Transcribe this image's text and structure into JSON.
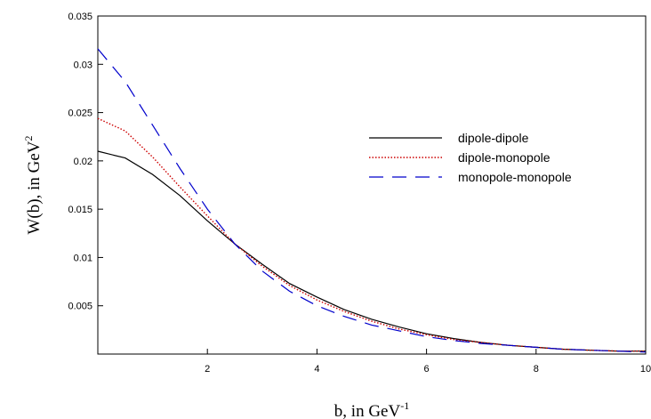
{
  "chart_data": {
    "type": "line",
    "title": "",
    "xlabel": {
      "main": "b, in GeV",
      "sup": "-1"
    },
    "ylabel": {
      "main": "W(b), in GeV",
      "sup": "2"
    },
    "xlim": [
      0,
      10
    ],
    "ylim": [
      0,
      0.035
    ],
    "x_ticks": [
      2,
      4,
      6,
      8,
      10
    ],
    "x_tick_labels": [
      "2",
      "4",
      "6",
      "8",
      "10"
    ],
    "y_ticks": [
      0.005,
      0.01,
      0.015,
      0.02,
      0.025,
      0.03,
      0.035
    ],
    "y_tick_labels": [
      "0.005",
      "0.01",
      "0.015",
      "0.02",
      "0.025",
      "0.03",
      "0.035"
    ],
    "grid": false,
    "legend_position": "right-middle",
    "series": [
      {
        "name": "dipole-dipole",
        "color": "#000000",
        "style": "solid",
        "x": [
          0,
          0.5,
          1,
          1.5,
          2,
          2.5,
          3,
          3.5,
          4,
          4.5,
          5,
          5.5,
          6,
          6.5,
          7,
          7.5,
          8,
          8.5,
          9,
          9.5,
          10
        ],
        "y": [
          0.021,
          0.0203,
          0.0186,
          0.0164,
          0.0138,
          0.0114,
          0.0093,
          0.0073,
          0.0059,
          0.0046,
          0.0036,
          0.0028,
          0.0021,
          0.0016,
          0.0012,
          0.0009,
          0.0007,
          0.0005,
          0.0004,
          0.0003,
          0.0003
        ]
      },
      {
        "name": "dipole-monopole",
        "color": "#cc0000",
        "style": "dotted",
        "x": [
          0,
          0.5,
          1,
          1.5,
          2,
          2.5,
          3,
          3.5,
          4,
          4.5,
          5,
          5.5,
          6,
          6.5,
          7,
          7.5,
          8,
          8.5,
          9,
          9.5,
          10
        ],
        "y": [
          0.0244,
          0.0231,
          0.0204,
          0.0173,
          0.0143,
          0.0114,
          0.0091,
          0.0071,
          0.0056,
          0.0044,
          0.0034,
          0.0026,
          0.002,
          0.0015,
          0.0012,
          0.0009,
          0.0007,
          0.0005,
          0.0004,
          0.0003,
          0.0003
        ]
      },
      {
        "name": "monopole-monopole",
        "color": "#0000cc",
        "style": "dashed",
        "x": [
          0,
          0.5,
          1,
          1.5,
          2,
          2.5,
          3,
          3.5,
          4,
          4.5,
          5,
          5.5,
          6,
          6.5,
          7,
          7.5,
          8,
          8.5,
          9,
          9.5,
          10
        ],
        "y": [
          0.0316,
          0.0282,
          0.0237,
          0.0192,
          0.015,
          0.0114,
          0.0086,
          0.0065,
          0.005,
          0.0039,
          0.003,
          0.0024,
          0.0018,
          0.0014,
          0.0011,
          0.0009,
          0.0007,
          0.0005,
          0.0004,
          0.0003,
          0.0002
        ]
      }
    ]
  }
}
